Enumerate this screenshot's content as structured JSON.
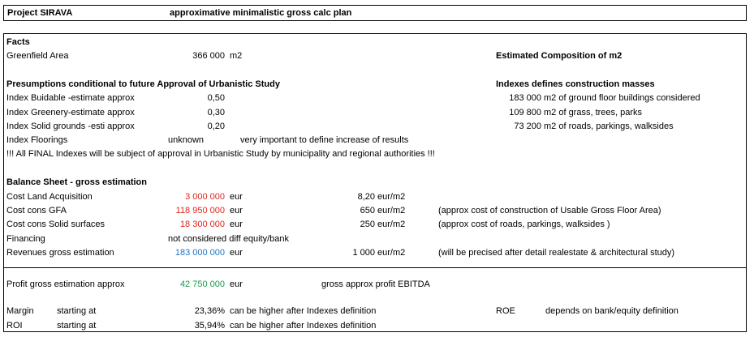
{
  "header": {
    "project": "Project SIRAVA",
    "subtitle": "approximative minimalistic gross calc plan"
  },
  "facts": {
    "title": "Facts",
    "greenfield_label": "Greenfield Area",
    "greenfield_value": "366 000",
    "greenfield_unit": "m2",
    "composition_title": "Estimated Composition of m2"
  },
  "presumptions": {
    "title": "Presumptions conditional to future Approval of Urbanistic Study",
    "indexes_title": "Indexes defines construction masses",
    "rows": [
      {
        "label": "Index Buidable -estimate approx",
        "value": "0,50",
        "m2": "183 000",
        "desc": "m2 of ground floor buildings considered"
      },
      {
        "label": "Index Greenery-estimate approx",
        "value": "0,30",
        "m2": "109 800",
        "desc": "m2 of grass, trees, parks"
      },
      {
        "label": "Index Solid grounds  -esti approx",
        "value": "0,20",
        "m2": "73 200",
        "desc": "m2 of roads, parkings, walksides"
      }
    ],
    "floorings_label": "Index Floorings",
    "floorings_value": "unknown",
    "floorings_note": "very important to define increase of results",
    "approval_note": "!!! All FINAL Indexes will be subject of approval in Urbanistic Study by municipality and regional authorities !!!"
  },
  "balance": {
    "title": "Balance Sheet - gross estimation",
    "rows": [
      {
        "label": "Cost Land Acquisition",
        "value": "3 000 000",
        "unit": "eur",
        "rate": "8,20",
        "rate_unit": "eur/m2",
        "note": "",
        "color": "#e0251b"
      },
      {
        "label": "Cost cons GFA",
        "value": "118 950 000",
        "unit": "eur",
        "rate": "650",
        "rate_unit": "eur/m2",
        "note": "(approx cost of construction of Usable Gross Floor Area)",
        "color": "#e0251b"
      },
      {
        "label": "Cost cons Solid surfaces",
        "value": "18 300 000",
        "unit": "eur",
        "rate": "250",
        "rate_unit": "eur/m2",
        "note": "(approx cost of roads, parkings, walksides )",
        "color": "#e0251b"
      },
      {
        "label": "Revenues gross estimation",
        "value": "183 000 000",
        "unit": "eur",
        "rate": "1 000",
        "rate_unit": "eur/m2",
        "note": "(will be precised after detail realestate & architectural study)",
        "color": "#1f74c4"
      }
    ],
    "financing_label": "Financing",
    "financing_note": "not considered diff equity/bank"
  },
  "results": {
    "profit_label": "Profit gross estimation approx",
    "profit_value": "42 750 000",
    "profit_unit": "eur",
    "profit_note": "gross approx profit EBITDA",
    "margin_label": "Margin",
    "margin_start": "starting at",
    "margin_value": "23,36%",
    "margin_note": "can be higher after Indexes definition",
    "roe_label": "ROE",
    "roe_note": "depends on bank/equity definition",
    "roi_label": "ROI",
    "roi_start": "starting at",
    "roi_value": "35,94%",
    "roi_note": "can be higher after Indexes definition"
  }
}
